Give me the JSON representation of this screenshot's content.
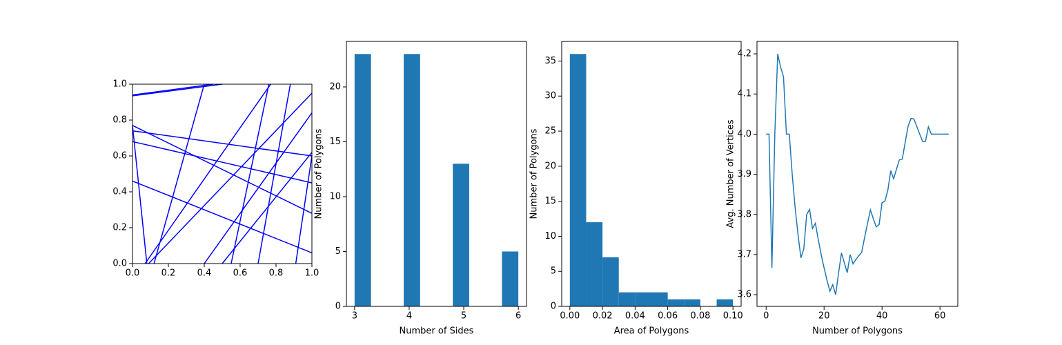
{
  "chart_data": [
    {
      "type": "lines",
      "color": "#0000ff",
      "xlim": [
        0,
        1
      ],
      "ylim": [
        0,
        1
      ],
      "xticks": [
        {
          "value": 0,
          "label": "0.0"
        },
        0.2,
        0.4,
        0.6,
        0.8,
        {
          "value": 1,
          "label": "1.0"
        }
      ],
      "yticks": [
        {
          "value": 0,
          "label": "0.0"
        },
        0.2,
        0.4,
        0.6,
        0.8,
        {
          "value": 1,
          "label": "1.0"
        }
      ],
      "series": [
        {
          "x": [
            0,
            0.45
          ],
          "values": [
            0.94,
            1.0
          ]
        },
        {
          "x": [
            0,
            0.5
          ],
          "values": [
            0.935,
            1.0
          ]
        },
        {
          "x": [
            0,
            1
          ],
          "values": [
            0.77,
            0.28
          ]
        },
        {
          "x": [
            0,
            1
          ],
          "values": [
            0.74,
            0.6
          ]
        },
        {
          "x": [
            0,
            1
          ],
          "values": [
            0.68,
            0.45
          ]
        },
        {
          "x": [
            0,
            1
          ],
          "values": [
            0.46,
            0.06
          ]
        },
        {
          "x": [
            0.07,
            0.77
          ],
          "values": [
            0,
            1.0
          ]
        },
        {
          "x": [
            0.09,
            1
          ],
          "values": [
            0,
            0.95
          ]
        },
        {
          "x": [
            0.12,
            0.4
          ],
          "values": [
            0,
            1.0
          ]
        },
        {
          "x": [
            0.4,
            1
          ],
          "values": [
            0,
            0.84
          ]
        },
        {
          "x": [
            0.5,
            1
          ],
          "values": [
            0,
            0.62
          ]
        },
        {
          "x": [
            0.55,
            0.76
          ],
          "values": [
            0,
            1.0
          ]
        },
        {
          "x": [
            0.7,
            0.88
          ],
          "values": [
            0,
            1.0
          ]
        },
        {
          "x": [
            0.91,
            1
          ],
          "values": [
            0,
            0.6
          ]
        },
        {
          "x": [
            0,
            0.08
          ],
          "values": [
            0.77,
            0
          ]
        }
      ]
    },
    {
      "type": "histogram",
      "color": "#1f77b4",
      "xlabel": "Number of Sides",
      "ylabel": "Number of Polygons",
      "bins": [
        3,
        3.3,
        3.6,
        3.9,
        4.2,
        4.5,
        4.8,
        5.1,
        5.4,
        5.7,
        6
      ],
      "values": [
        23,
        0,
        0,
        23,
        0,
        0,
        13,
        0,
        0,
        5
      ],
      "xlim": [
        2.85,
        6.15
      ],
      "ylim": [
        0,
        24.15
      ],
      "xticks": [
        3,
        4,
        5,
        6
      ],
      "yticks": [
        0,
        5,
        10,
        15,
        20
      ]
    },
    {
      "type": "histogram",
      "color": "#1f77b4",
      "xlabel": "Area of Polygons",
      "ylabel": "Number of Polygons",
      "bins": [
        0,
        0.01,
        0.02,
        0.03,
        0.04,
        0.05,
        0.06,
        0.07,
        0.08,
        0.09,
        0.1
      ],
      "values": [
        36,
        12,
        7,
        2,
        2,
        2,
        1,
        1,
        0,
        1
      ],
      "xlim": [
        -0.005,
        0.105
      ],
      "ylim": [
        0,
        37.8
      ],
      "xticks": [
        {
          "value": 0,
          "label": "0.00"
        },
        0.02,
        0.04,
        0.06,
        0.08,
        {
          "value": 0.1,
          "label": "0.10"
        }
      ],
      "yticks": [
        0,
        5,
        10,
        15,
        20,
        25,
        30,
        35
      ]
    },
    {
      "type": "line",
      "color": "#1f77b4",
      "xlabel": "Number of Polygons",
      "ylabel": "Avg. Number of Vertices",
      "x": [
        0,
        1,
        2,
        3,
        4,
        5,
        6,
        7,
        8,
        9,
        10,
        11,
        12,
        13,
        14,
        15,
        16,
        17,
        18,
        19,
        20,
        21,
        22,
        23,
        24,
        25,
        26,
        27,
        28,
        29,
        30,
        31,
        32,
        33,
        34,
        35,
        36,
        37,
        38,
        39,
        40,
        41,
        42,
        43,
        44,
        45,
        46,
        47,
        48,
        49,
        50,
        51,
        52,
        53,
        54,
        55,
        56,
        57,
        58,
        59,
        60,
        61,
        62,
        63
      ],
      "values": [
        4.0,
        4.0,
        3.667,
        4.0,
        4.2,
        4.167,
        4.143,
        4.0,
        4.0,
        3.9,
        3.818,
        3.75,
        3.692,
        3.714,
        3.8,
        3.8125,
        3.765,
        3.778,
        3.737,
        3.7,
        3.667,
        3.636,
        3.609,
        3.625,
        3.6,
        3.654,
        3.704,
        3.679,
        3.655,
        3.7,
        3.677,
        3.688,
        3.697,
        3.706,
        3.743,
        3.778,
        3.811,
        3.789,
        3.769,
        3.775,
        3.829,
        3.833,
        3.86,
        3.909,
        3.889,
        3.913,
        3.936,
        3.938,
        3.98,
        4.02,
        4.039,
        4.038,
        4.019,
        4.0,
        3.982,
        3.982,
        4.018,
        4.0,
        4.0,
        4.0,
        4.0,
        4.0,
        4.0,
        4.0
      ],
      "xlim": [
        -3.15,
        66.15
      ],
      "ylim": [
        3.571,
        4.231
      ],
      "xticks": [
        0,
        20,
        40,
        60
      ],
      "yticks": [
        3.6,
        3.7,
        3.8,
        3.9,
        {
          "value": 4,
          "label": "4.0"
        },
        4.1,
        4.2
      ]
    }
  ]
}
